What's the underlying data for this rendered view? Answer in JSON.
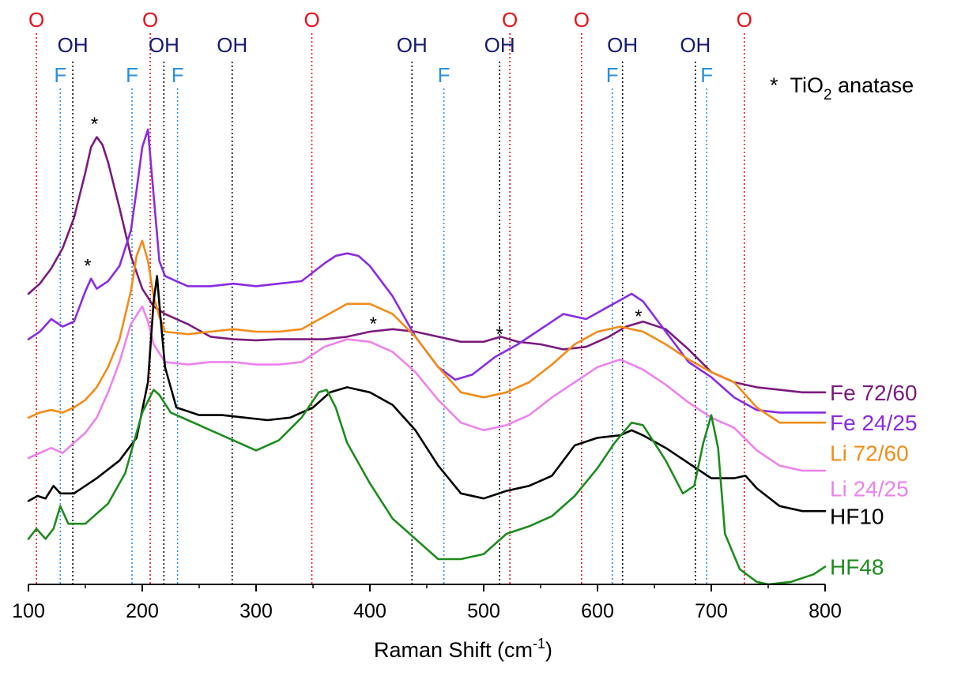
{
  "chart_data": {
    "type": "line",
    "xlabel": "Raman Shift (cm",
    "xlabel_sup": "-1",
    "xlabel_end": ")",
    "ylabel": "",
    "xlim": [
      100,
      800
    ],
    "ylim": [
      0,
      100
    ],
    "x_ticks": [
      100,
      200,
      300,
      400,
      500,
      600,
      700,
      800
    ],
    "grid": false,
    "note": {
      "star": "*",
      "text": "TiO",
      "sub": "2",
      "text_end": " anatase"
    },
    "colors": {
      "O": "#e8121c",
      "F": "#2b8fe0",
      "OH": "#151a72",
      "OH_line": "#000000"
    },
    "reference_lines": [
      {
        "label": "O",
        "x": 107
      },
      {
        "label": "O",
        "x": 207
      },
      {
        "label": "O",
        "x": 349
      },
      {
        "label": "O",
        "x": 523
      },
      {
        "label": "O",
        "x": 586
      },
      {
        "label": "O",
        "x": 729
      },
      {
        "label": "F",
        "x": 128
      },
      {
        "label": "F",
        "x": 191
      },
      {
        "label": "F",
        "x": 231
      },
      {
        "label": "F",
        "x": 465
      },
      {
        "label": "F",
        "x": 613
      },
      {
        "label": "F",
        "x": 696
      },
      {
        "label": "OH",
        "x": 139
      },
      {
        "label": "OH",
        "x": 219
      },
      {
        "label": "OH",
        "x": 279
      },
      {
        "label": "OH",
        "x": 437
      },
      {
        "label": "OH",
        "x": 514
      },
      {
        "label": "OH",
        "x": 622
      },
      {
        "label": "OH",
        "x": 686
      }
    ],
    "series": [
      {
        "name": "Fe 72/60",
        "color": "#7b1a7e",
        "x": [
          100,
          110,
          120,
          130,
          140,
          150,
          155,
          160,
          165,
          170,
          180,
          190,
          200,
          210,
          220,
          240,
          260,
          280,
          300,
          320,
          340,
          360,
          380,
          400,
          420,
          440,
          460,
          480,
          500,
          515,
          530,
          550,
          570,
          590,
          610,
          625,
          640,
          660,
          680,
          700,
          720,
          740,
          760,
          780,
          800
        ],
        "y": [
          57.5,
          59.5,
          62.5,
          66.5,
          72.5,
          81.5,
          86.5,
          88.5,
          87.0,
          83.5,
          74.5,
          65.0,
          58.5,
          55.0,
          53.5,
          51.5,
          49.0,
          48.5,
          48.3,
          48.5,
          48.5,
          48.5,
          49.0,
          50.0,
          50.5,
          50.0,
          49.0,
          48.0,
          48.0,
          49.0,
          48.0,
          47.5,
          46.5,
          47.0,
          49.0,
          51.0,
          52.0,
          50.5,
          46.5,
          42.0,
          40.0,
          39.0,
          38.5,
          38.0,
          38.0
        ]
      },
      {
        "name": "Fe 24/25",
        "color": "#8a2be2",
        "x": [
          100,
          110,
          120,
          130,
          140,
          150,
          155,
          160,
          170,
          180,
          190,
          195,
          200,
          205,
          210,
          215,
          220,
          240,
          260,
          280,
          300,
          320,
          340,
          360,
          370,
          380,
          390,
          400,
          420,
          440,
          460,
          475,
          490,
          510,
          530,
          550,
          570,
          590,
          610,
          630,
          640,
          660,
          680,
          700,
          720,
          740,
          760,
          780,
          800
        ],
        "y": [
          48.5,
          50.0,
          52.5,
          51.0,
          52.0,
          58.0,
          60.5,
          58.5,
          60.0,
          63.0,
          70.0,
          78.0,
          86.5,
          90.0,
          77.0,
          64.0,
          61.0,
          59.0,
          59.0,
          59.5,
          59.0,
          59.5,
          60.0,
          63.5,
          65.0,
          65.5,
          65.0,
          63.0,
          57.0,
          49.0,
          43.0,
          40.5,
          41.5,
          45.0,
          47.5,
          50.5,
          53.5,
          52.5,
          55.0,
          57.5,
          56.0,
          50.0,
          44.0,
          41.0,
          37.0,
          34.5,
          34.0,
          34.0,
          34.0
        ]
      },
      {
        "name": "Li 72/60",
        "color": "#f28c18",
        "x": [
          100,
          110,
          120,
          130,
          140,
          150,
          160,
          170,
          180,
          190,
          195,
          200,
          205,
          210,
          215,
          220,
          240,
          260,
          280,
          300,
          320,
          340,
          360,
          380,
          400,
          420,
          440,
          460,
          480,
          500,
          520,
          540,
          560,
          580,
          600,
          620,
          640,
          660,
          680,
          700,
          720,
          740,
          760,
          780,
          800
        ],
        "y": [
          33.0,
          34.0,
          34.5,
          34.0,
          35.0,
          36.5,
          39.0,
          43.0,
          48.5,
          58.0,
          65.0,
          68.0,
          64.0,
          57.0,
          53.0,
          50.0,
          49.5,
          50.0,
          50.5,
          50.0,
          50.0,
          50.5,
          53.0,
          55.5,
          55.5,
          53.5,
          49.0,
          43.0,
          38.0,
          37.0,
          38.0,
          40.0,
          43.5,
          47.5,
          50.0,
          51.0,
          50.0,
          47.5,
          44.5,
          42.0,
          40.0,
          35.0,
          32.0,
          32.0,
          32.0
        ]
      },
      {
        "name": "Li 24/25",
        "color": "#ee82ee",
        "x": [
          100,
          110,
          120,
          130,
          140,
          150,
          160,
          170,
          180,
          190,
          200,
          205,
          210,
          220,
          240,
          260,
          280,
          300,
          320,
          340,
          360,
          380,
          400,
          420,
          440,
          460,
          480,
          500,
          520,
          540,
          560,
          580,
          600,
          620,
          640,
          660,
          680,
          700,
          720,
          740,
          760,
          780,
          800
        ],
        "y": [
          25.0,
          26.0,
          27.0,
          26.0,
          28.0,
          30.0,
          33.0,
          38.0,
          44.0,
          51.5,
          55.0,
          52.0,
          47.5,
          44.0,
          43.5,
          44.0,
          44.0,
          43.5,
          43.5,
          44.0,
          47.0,
          48.5,
          48.0,
          46.0,
          42.0,
          36.5,
          32.0,
          30.5,
          31.5,
          33.5,
          37.0,
          40.0,
          43.0,
          44.5,
          42.5,
          39.5,
          36.0,
          33.0,
          31.0,
          26.5,
          23.5,
          22.5,
          22.5
        ]
      },
      {
        "name": "HF10",
        "color": "#000000",
        "x": [
          100,
          108,
          115,
          122,
          128,
          140,
          160,
          180,
          195,
          205,
          210,
          213,
          216,
          220,
          230,
          250,
          270,
          290,
          310,
          330,
          350,
          365,
          380,
          400,
          420,
          440,
          460,
          480,
          500,
          520,
          540,
          560,
          580,
          600,
          620,
          630,
          640,
          660,
          680,
          700,
          720,
          730,
          740,
          760,
          780,
          800
        ],
        "y": [
          16.5,
          17.5,
          17.0,
          19.5,
          18.0,
          18.0,
          21.0,
          24.5,
          29.0,
          40.0,
          56.0,
          61.0,
          53.0,
          43.0,
          35.0,
          33.5,
          33.5,
          33.0,
          32.5,
          33.0,
          35.0,
          38.0,
          39.0,
          38.0,
          35.5,
          30.5,
          23.5,
          18.0,
          17.0,
          18.5,
          19.5,
          21.5,
          27.5,
          29.0,
          29.5,
          30.5,
          29.5,
          27.0,
          24.0,
          21.0,
          21.0,
          21.5,
          19.0,
          15.5,
          14.5,
          14.5
        ]
      },
      {
        "name": "HF48",
        "color": "#1e8c1e",
        "x": [
          100,
          107,
          115,
          122,
          128,
          135,
          150,
          170,
          185,
          200,
          210,
          215,
          225,
          240,
          260,
          280,
          300,
          320,
          340,
          355,
          362,
          370,
          380,
          400,
          420,
          440,
          460,
          480,
          500,
          520,
          540,
          560,
          580,
          600,
          615,
          630,
          640,
          660,
          675,
          685,
          693,
          700,
          706,
          712,
          725,
          740,
          750,
          770,
          790,
          800
        ],
        "y": [
          9.0,
          11.0,
          9.0,
          11.0,
          15.5,
          12.0,
          12.0,
          16.0,
          22.0,
          34.0,
          38.5,
          37.5,
          34.0,
          32.5,
          30.5,
          28.5,
          26.5,
          28.5,
          33.0,
          38.0,
          38.5,
          35.0,
          28.0,
          20.0,
          13.0,
          9.0,
          5.0,
          5.0,
          6.0,
          10.0,
          11.5,
          13.5,
          17.5,
          23.0,
          28.0,
          32.0,
          31.5,
          24.5,
          18.0,
          19.5,
          28.0,
          33.5,
          27.0,
          10.0,
          3.0,
          0.5,
          0.0,
          0.5,
          2.0,
          3.5
        ]
      }
    ],
    "series_labels": [
      {
        "name": "Fe 72/60",
        "y": 38.0
      },
      {
        "name": "Fe 24/25",
        "y": 32.0
      },
      {
        "name": "Li 72/60",
        "y": 26.0
      },
      {
        "name": "Li 24/25",
        "y": 19.0
      },
      {
        "name": "HF10",
        "y": 13.5
      },
      {
        "name": "HF48",
        "y": 3.5
      }
    ],
    "stars": [
      {
        "text": "*",
        "x": 158,
        "y": 92.0
      },
      {
        "text": "*",
        "x": 152,
        "y": 64.0
      },
      {
        "text": "*",
        "x": 403,
        "y": 52.5
      },
      {
        "text": "*",
        "x": 514,
        "y": 50.5
      },
      {
        "text": "*",
        "x": 636,
        "y": 54.0
      }
    ]
  }
}
